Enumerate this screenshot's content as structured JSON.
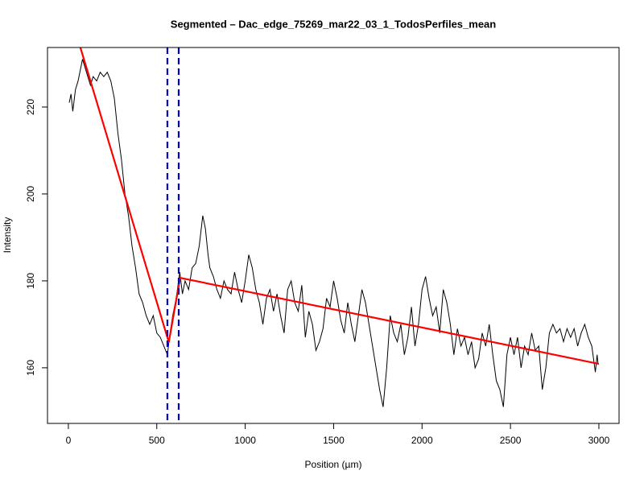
{
  "chart_data": {
    "type": "line",
    "title": "Segmented – Dac_edge_75269_mar22_03_1_TodosPerfiles_mean",
    "x_label": "Position (µm)",
    "y_label": "Intensity",
    "xlim": [
      -118,
      3114
    ],
    "ylim": [
      147.2,
      233.7
    ],
    "xticks": [
      0,
      500,
      1000,
      1500,
      2000,
      2500,
      3000
    ],
    "yticks": [
      160,
      180,
      200,
      220
    ],
    "series": [
      {
        "color": "#000000",
        "x": [
          5,
          15,
          25,
          40,
          55,
          70,
          80,
          95,
          110,
          125,
          140,
          160,
          180,
          200,
          220,
          240,
          260,
          280,
          300,
          320,
          340,
          360,
          380,
          400,
          420,
          440,
          460,
          480,
          500,
          520,
          540,
          560,
          575,
          590,
          610,
          630,
          645,
          660,
          680,
          700,
          720,
          740,
          760,
          775,
          790,
          800,
          820,
          840,
          860,
          880,
          900,
          920,
          940,
          960,
          980,
          1000,
          1020,
          1040,
          1060,
          1080,
          1100,
          1120,
          1140,
          1160,
          1180,
          1200,
          1220,
          1240,
          1260,
          1280,
          1300,
          1320,
          1340,
          1360,
          1380,
          1400,
          1420,
          1440,
          1460,
          1480,
          1500,
          1520,
          1540,
          1560,
          1580,
          1600,
          1620,
          1640,
          1660,
          1680,
          1700,
          1720,
          1740,
          1760,
          1780,
          1800,
          1820,
          1840,
          1860,
          1880,
          1900,
          1920,
          1940,
          1960,
          1980,
          2000,
          2020,
          2040,
          2060,
          2080,
          2100,
          2120,
          2140,
          2160,
          2180,
          2200,
          2220,
          2240,
          2260,
          2280,
          2300,
          2320,
          2340,
          2360,
          2380,
          2400,
          2420,
          2440,
          2460,
          2480,
          2500,
          2520,
          2540,
          2560,
          2580,
          2600,
          2620,
          2640,
          2660,
          2680,
          2700,
          2720,
          2740,
          2760,
          2780,
          2800,
          2820,
          2840,
          2860,
          2880,
          2900,
          2920,
          2940,
          2960,
          2980,
          2990,
          2995
        ],
        "values": [
          221,
          223,
          219,
          224,
          226,
          229,
          231,
          229,
          227,
          225,
          227,
          226,
          228,
          227,
          228,
          226,
          222,
          214,
          208,
          200,
          195,
          188,
          183,
          177,
          175,
          172,
          170,
          172,
          168,
          167,
          165,
          163,
          168,
          172,
          176,
          182,
          177,
          180,
          178,
          183,
          184,
          188,
          195,
          192,
          186,
          183,
          181,
          178,
          176,
          180,
          178,
          177,
          182,
          178,
          175,
          180,
          186,
          183,
          178,
          175,
          170,
          176,
          178,
          173,
          177,
          172,
          168,
          178,
          180,
          175,
          173,
          179,
          167,
          173,
          170,
          164,
          166,
          169,
          176,
          174,
          180,
          176,
          171,
          168,
          175,
          170,
          166,
          172,
          178,
          175,
          170,
          165,
          160,
          155,
          151,
          160,
          172,
          168,
          166,
          170,
          163,
          167,
          174,
          165,
          170,
          178,
          181,
          176,
          172,
          174,
          168,
          178,
          175,
          170,
          163,
          169,
          165,
          167,
          163,
          166,
          160,
          162,
          168,
          165,
          170,
          163,
          157,
          155,
          151,
          163,
          167,
          163,
          167,
          160,
          165,
          163,
          168,
          164,
          165,
          155,
          160,
          168,
          170,
          168,
          169,
          166,
          169,
          167,
          169,
          165,
          168,
          170,
          167,
          165,
          159,
          163,
          161
        ]
      },
      {
        "color": "#ff0000",
        "x": [
          68,
          568,
          632,
          3000
        ],
        "values": [
          233.7,
          165.9,
          180.7,
          160.9
        ]
      }
    ],
    "vlines": {
      "color": "#0000cd",
      "x": [
        560,
        624
      ]
    }
  }
}
